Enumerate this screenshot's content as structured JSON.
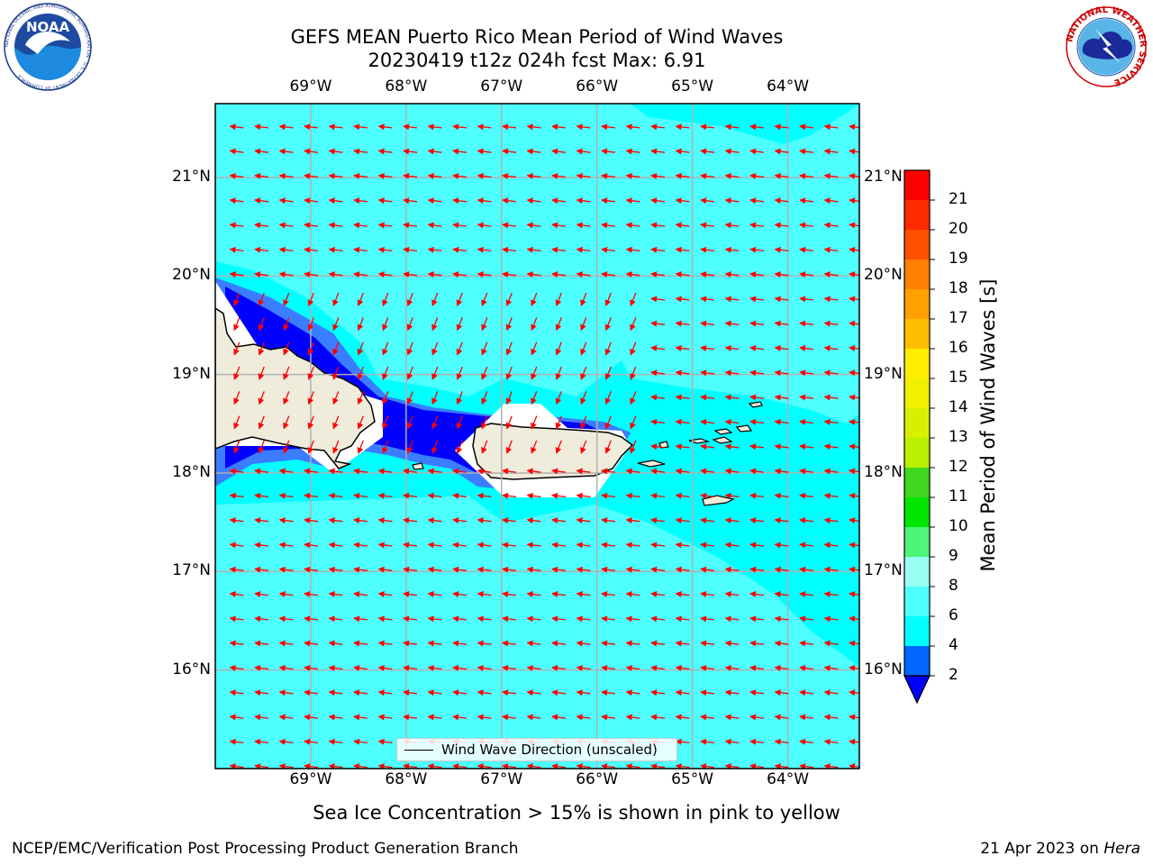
{
  "title": {
    "line1": "GEFS MEAN Puerto Rico Mean Period of Wind Waves",
    "line2": "20230419 t12z 024h fcst   Max: 6.91"
  },
  "logos": {
    "left": {
      "text": "NOAA",
      "ring_text": "NATIONAL OCEANIC AND ATMOSPHERIC ADMINISTRATION · U.S. DEPARTMENT OF COMMERCE"
    },
    "right": {
      "ring_text": "NATIONAL WEATHER SERVICE"
    }
  },
  "map": {
    "lon_labels": [
      "69°W",
      "68°W",
      "67°W",
      "66°W",
      "65°W",
      "64°W"
    ],
    "lat_labels": [
      "21°N",
      "20°N",
      "19°N",
      "18°N",
      "17°N",
      "16°N"
    ],
    "lon_values": [
      -69,
      -68,
      -67,
      -66,
      -65,
      -64
    ],
    "lat_values": [
      21,
      20,
      19,
      18,
      17,
      16
    ],
    "lon_range": [
      -70.0,
      -63.25
    ],
    "lat_range": [
      15.0,
      21.75
    ],
    "grid": true,
    "vector_color": "#ff0000",
    "land_color": "#efecdc",
    "fill_colors": {
      "2-4": "#0014ff",
      "4-6": "#00ffff",
      "6-8": "#4dffff",
      "near-2": "#0000ff",
      "4-4": "#3b7dff"
    }
  },
  "legend": {
    "label": "Wind Wave Direction (unscaled)",
    "location": "lower-center"
  },
  "colorbar": {
    "title": "Mean Period of Wind Waves [s]",
    "ticks": [
      "2",
      "4",
      "6",
      "8",
      "9",
      "10",
      "11",
      "12",
      "13",
      "14",
      "15",
      "16",
      "17",
      "18",
      "19",
      "20",
      "21"
    ],
    "bins": [
      {
        "from": 2,
        "to": 4,
        "color": "#0066ff"
      },
      {
        "from": 4,
        "to": 6,
        "color": "#00ffff"
      },
      {
        "from": 6,
        "to": 8,
        "color": "#4dffff"
      },
      {
        "from": 8,
        "to": 9,
        "color": "#99fff0"
      },
      {
        "from": 9,
        "to": 10,
        "color": "#4df57a"
      },
      {
        "from": 10,
        "to": 11,
        "color": "#00e600"
      },
      {
        "from": 11,
        "to": 12,
        "color": "#40d820"
      },
      {
        "from": 12,
        "to": 13,
        "color": "#b8f000"
      },
      {
        "from": 13,
        "to": 14,
        "color": "#d8f000"
      },
      {
        "from": 14,
        "to": 15,
        "color": "#f0f000"
      },
      {
        "from": 15,
        "to": 16,
        "color": "#ffee00"
      },
      {
        "from": 16,
        "to": 17,
        "color": "#ffbf00"
      },
      {
        "from": 17,
        "to": 18,
        "color": "#ffa000"
      },
      {
        "from": 18,
        "to": 19,
        "color": "#ff8000"
      },
      {
        "from": 19,
        "to": 20,
        "color": "#ff5000"
      },
      {
        "from": 20,
        "to": 21,
        "color": "#ff2a00"
      },
      {
        "from": 21,
        "to": 22,
        "color": "#ff0000"
      }
    ],
    "under_color": "#0000ff"
  },
  "subtitle": "Sea Ice Concentration > 15% is shown in pink to yellow",
  "footer": {
    "left": "NCEP/EMC/Verification Post Processing Product Generation Branch",
    "right_prefix": "21 Apr 2023 on ",
    "right_machine": "Hera"
  }
}
